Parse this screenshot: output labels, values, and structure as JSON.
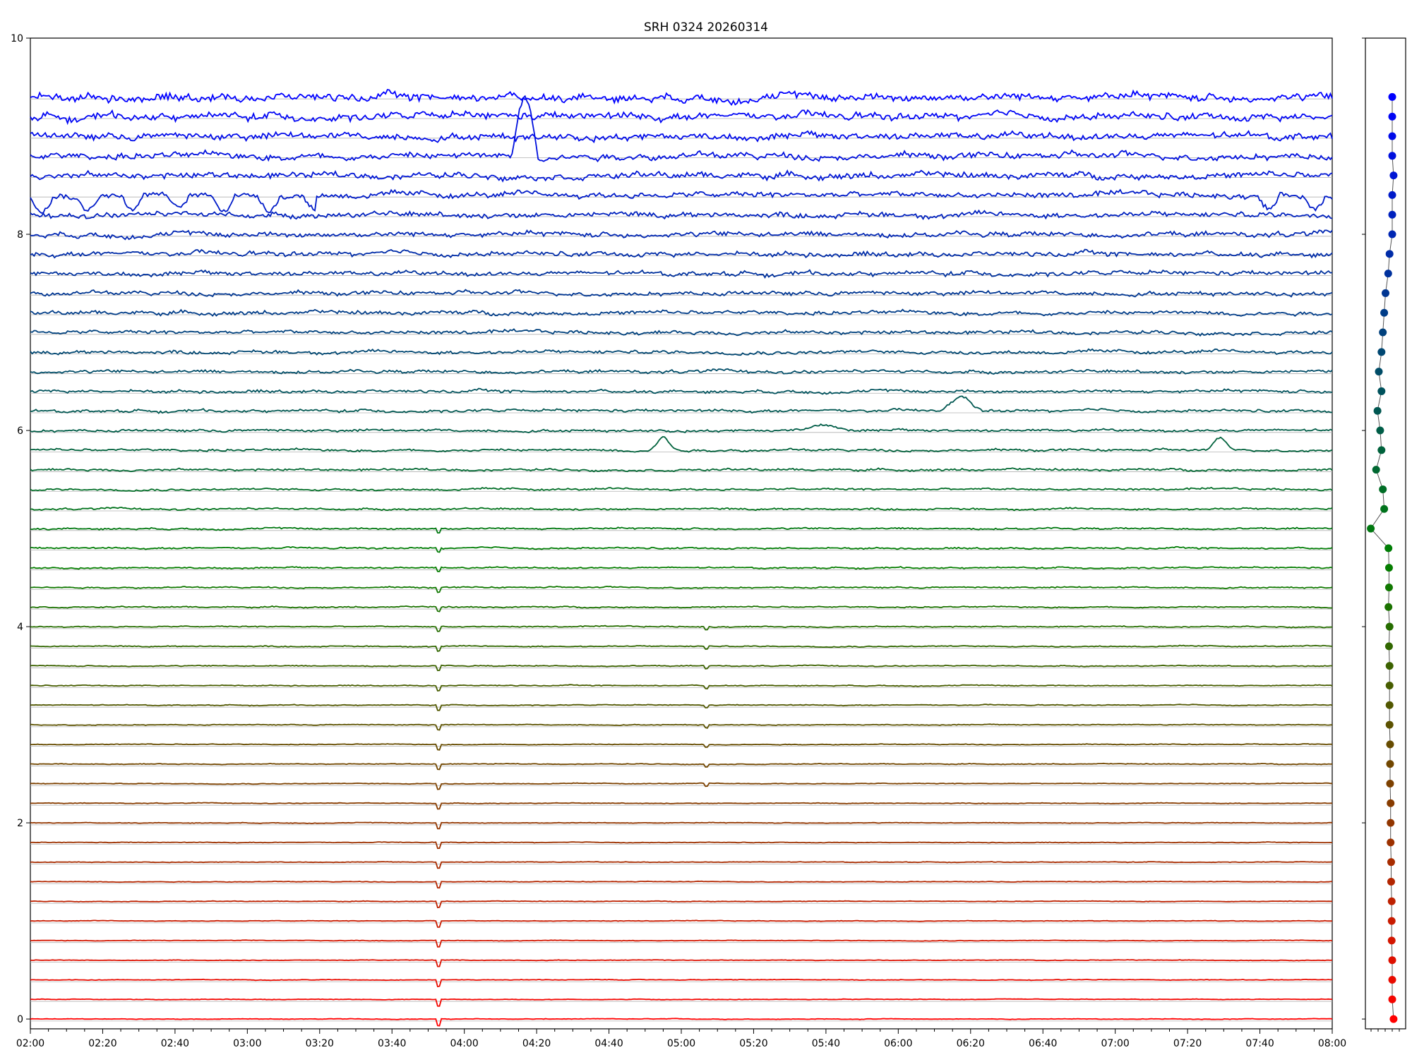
{
  "chart_data": [
    {
      "type": "line",
      "title": "SRH 0324 20260314",
      "xlabel": "",
      "ylabel": "",
      "x_range": [
        "02:00",
        "08:00"
      ],
      "x_tick_labels": [
        "02:00",
        "02:20",
        "02:40",
        "03:00",
        "03:20",
        "03:40",
        "04:00",
        "04:20",
        "04:40",
        "05:00",
        "05:20",
        "05:40",
        "06:00",
        "06:20",
        "06:40",
        "07:00",
        "07:20",
        "07:40",
        "08:00"
      ],
      "ylim": [
        -0.1,
        10
      ],
      "y_tick_labels": [
        "0",
        "2",
        "4",
        "6",
        "8",
        "10"
      ],
      "y_tick_values": [
        0,
        2,
        4,
        6,
        8,
        10
      ],
      "grid": "horizontal lines at each trace baseline",
      "legend": "none",
      "color_gradient": {
        "bottom": "#ff0000",
        "middle": "#008000",
        "top": "#0000ff"
      },
      "trace_count": 48,
      "trace_spacing": 0.2,
      "trace_baseline_start": 0,
      "notable_events": [
        {
          "time": "03:53",
          "description": "sharp dip visible on traces 0 to 5.0"
        },
        {
          "time": "05:07",
          "description": "small dip visible on traces 2.4 to 4.0"
        },
        {
          "time": "04:10-04:20",
          "description": "large excursion on traces 8.8 to 9.4"
        },
        {
          "time": "02:28",
          "description": "deep oscillations on traces 8.0 to 8.4"
        },
        {
          "time": "06:17",
          "description": "bump on trace 6.2"
        },
        {
          "time": "04:55",
          "description": "bump on trace 5.8"
        },
        {
          "time": "07:29",
          "description": "bump on trace 5.8"
        }
      ]
    },
    {
      "type": "line",
      "title": "",
      "description_values": "per-trace level markers",
      "y_values": [
        0,
        0.2,
        0.4,
        0.6,
        0.8,
        1.0,
        1.2,
        1.4,
        1.6,
        1.8,
        2.0,
        2.2,
        2.4,
        2.6,
        2.8,
        3.0,
        3.2,
        3.4,
        3.6,
        3.8,
        4.0,
        4.2,
        4.4,
        4.6,
        4.8,
        5.0,
        5.2,
        5.4,
        5.6,
        5.8,
        6.0,
        6.2,
        6.4,
        6.6,
        6.8,
        7.0,
        7.2,
        7.4,
        7.6,
        7.8,
        8.0,
        8.2,
        8.4,
        8.6,
        8.8,
        9.0,
        9.2,
        9.4
      ],
      "x_offsets": [
        0.55,
        0.5,
        0.5,
        0.5,
        0.48,
        0.48,
        0.48,
        0.46,
        0.46,
        0.44,
        0.44,
        0.44,
        0.42,
        0.42,
        0.42,
        0.4,
        0.4,
        0.4,
        0.4,
        0.38,
        0.4,
        0.36,
        0.38,
        0.38,
        0.36,
        -0.3,
        0.2,
        0.15,
        -0.1,
        0.1,
        0.05,
        -0.05,
        0.1,
        0.0,
        0.1,
        0.15,
        0.2,
        0.25,
        0.35,
        0.4,
        0.5,
        0.5,
        0.5,
        0.55,
        0.5,
        0.5,
        0.5,
        0.5
      ],
      "xlim": [
        -0.5,
        1.0
      ],
      "ylim": [
        -0.1,
        10
      ]
    }
  ]
}
